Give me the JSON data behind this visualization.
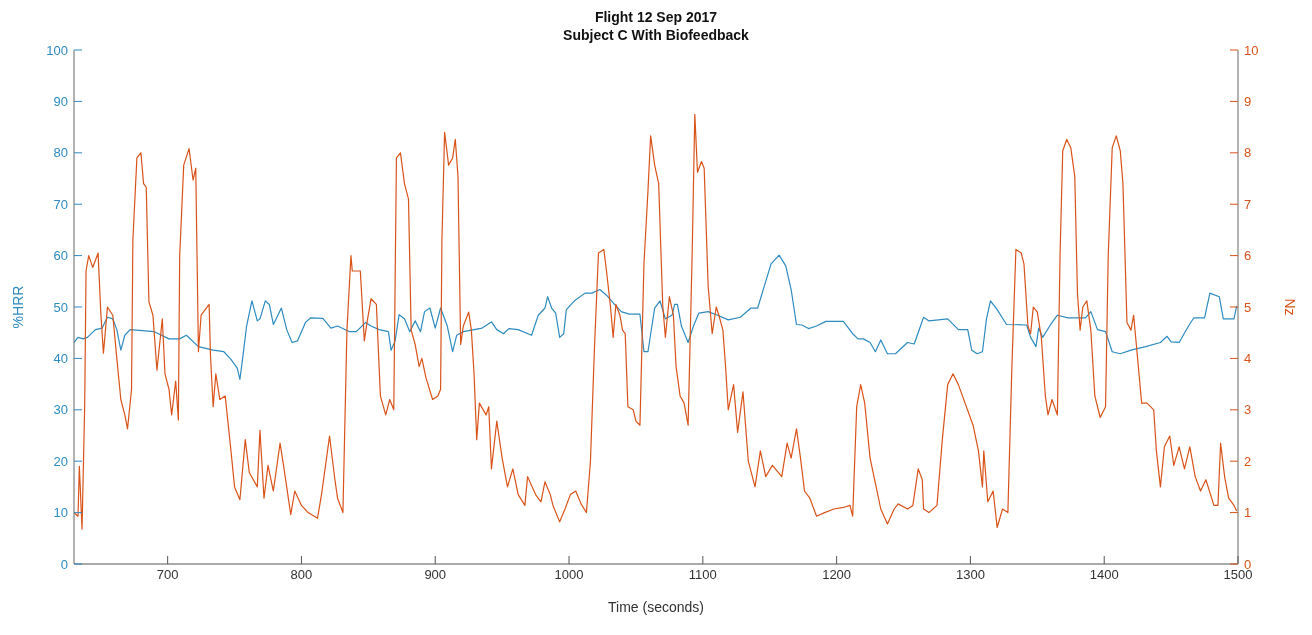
{
  "chart_data": {
    "type": "line",
    "title": "Flight 12 Sep 2017",
    "subtitle": "Subject C With Biofeedback",
    "xlabel": "Time (seconds)",
    "ylabel": "%HRR",
    "y2label": "Nz",
    "xlim": [
      630,
      1500
    ],
    "xticks": [
      700,
      800,
      900,
      1000,
      1100,
      1200,
      1300,
      1400,
      1500
    ],
    "ylim": [
      0,
      100
    ],
    "yticks": [
      0,
      10,
      20,
      30,
      40,
      50,
      60,
      70,
      80,
      90,
      100
    ],
    "y2lim": [
      0,
      10
    ],
    "y2ticks": [
      0,
      1,
      2,
      3,
      4,
      5,
      6,
      7,
      8,
      9,
      10
    ],
    "series": [
      {
        "color": "#2e8bc0",
        "axis": "y",
        "x": [
          630,
          633,
          637,
          640,
          646,
          651,
          655,
          659,
          662,
          665,
          668,
          672,
          690,
          701,
          709,
          714,
          723,
          734,
          742,
          747,
          752,
          754,
          756,
          759,
          763,
          767,
          769,
          773,
          776,
          779,
          785,
          789,
          793,
          797,
          803,
          807,
          816,
          822,
          827,
          836,
          841,
          848,
          852,
          858,
          865,
          867,
          870,
          873,
          877,
          881,
          885,
          889,
          892,
          896,
          900,
          904,
          909,
          913,
          916,
          921,
          935,
          942,
          946,
          951,
          955,
          962,
          972,
          977,
          982,
          984,
          987,
          990,
          993,
          996,
          998,
          1004,
          1012,
          1017,
          1023,
          1028,
          1034,
          1039,
          1045,
          1053,
          1056,
          1059,
          1064,
          1068,
          1072,
          1077,
          1079,
          1081,
          1084,
          1089,
          1093,
          1097,
          1104,
          1111,
          1119,
          1128,
          1136,
          1141,
          1146,
          1151,
          1157,
          1162,
          1166,
          1170,
          1174,
          1179,
          1185,
          1192,
          1205,
          1212,
          1216,
          1220,
          1225,
          1229,
          1233,
          1238,
          1244,
          1253,
          1258,
          1265,
          1269,
          1283,
          1291,
          1298,
          1301,
          1305,
          1309,
          1312,
          1315,
          1320,
          1327,
          1342,
          1345,
          1349,
          1351,
          1354,
          1360,
          1365,
          1373,
          1386,
          1390,
          1395,
          1401,
          1406,
          1412,
          1420,
          1431,
          1442,
          1447,
          1450,
          1456,
          1463,
          1467,
          1475,
          1479,
          1486,
          1489,
          1497,
          1499
        ],
        "values": [
          43.1,
          44.1,
          43.8,
          44.1,
          45.6,
          45.9,
          48,
          47.7,
          45.6,
          41.6,
          44.5,
          45.6,
          45.2,
          43.8,
          43.8,
          44.5,
          42.3,
          41.6,
          41.3,
          39.9,
          38.1,
          35.9,
          39.9,
          46.3,
          51.2,
          47.3,
          47.7,
          51.2,
          50.5,
          46.6,
          49.8,
          45.6,
          43.1,
          43.4,
          47,
          47.9,
          47.8,
          45.9,
          46.3,
          45.2,
          45.2,
          47,
          46.3,
          45.6,
          45.2,
          41.6,
          43.4,
          48.5,
          47.7,
          45.2,
          47.3,
          45.2,
          49.1,
          49.8,
          45.9,
          49.8,
          46.3,
          41.3,
          44.5,
          45.2,
          45.9,
          47.1,
          45.6,
          44.8,
          45.8,
          45.6,
          44.5,
          48.4,
          49.8,
          52,
          49.8,
          48.8,
          44.1,
          44.8,
          49.5,
          51.2,
          52.7,
          52.7,
          53.4,
          52.3,
          50.5,
          49.1,
          48.6,
          48.6,
          41.3,
          41.3,
          49.8,
          51.2,
          47.7,
          48.4,
          50.5,
          50.5,
          46.3,
          43.1,
          46.3,
          48.8,
          49.1,
          48.4,
          47.5,
          48,
          49.8,
          49.8,
          54.1,
          58.4,
          60.1,
          58,
          53.4,
          46.6,
          46.5,
          45.8,
          46.3,
          47.2,
          47.2,
          44.8,
          43.8,
          43.8,
          43.1,
          41.3,
          43.6,
          40.9,
          40.9,
          43.1,
          42.8,
          48,
          47.3,
          47.7,
          45.6,
          45.6,
          41.6,
          40.9,
          41.3,
          47.7,
          51.2,
          49.5,
          46.6,
          46.5,
          44.1,
          42.3,
          45.9,
          44.1,
          46.6,
          48.4,
          47.9,
          47.9,
          49.1,
          45.6,
          45.2,
          41.3,
          40.9,
          41.6,
          42.3,
          43.1,
          44.3,
          43.2,
          43.1,
          46.3,
          47.9,
          47.9,
          52.7,
          52,
          47.7,
          47.7,
          50.2
        ]
      },
      {
        "color": "#d95319",
        "axis": "y2",
        "x": [
          630,
          633,
          634,
          636,
          638,
          639,
          641,
          644,
          648,
          650,
          652,
          655,
          659,
          662,
          665,
          668,
          670,
          673,
          674,
          677,
          680,
          682,
          684,
          686,
          689,
          692,
          696,
          698,
          701,
          703,
          706,
          708,
          709,
          712,
          716,
          719,
          721,
          723,
          725,
          731,
          732,
          734,
          736,
          739,
          743,
          747,
          750,
          754,
          758,
          761,
          767,
          769,
          772,
          775,
          779,
          784,
          787,
          792,
          795,
          800,
          805,
          812,
          815,
          821,
          825,
          827,
          831,
          834,
          837,
          838,
          844,
          847,
          849,
          852,
          856,
          859,
          863,
          866,
          869,
          871,
          874,
          877,
          880,
          882,
          885,
          888,
          890,
          893,
          898,
          902,
          904,
          905,
          907,
          910,
          913,
          915,
          917,
          919,
          921,
          925,
          927,
          929,
          931,
          933,
          938,
          940,
          942,
          946,
          950,
          954,
          958,
          962,
          967,
          969,
          975,
          979,
          982,
          986,
          988,
          993,
          997,
          1001,
          1005,
          1009,
          1013,
          1016,
          1019,
          1022,
          1026,
          1028,
          1031,
          1033,
          1035,
          1038,
          1040,
          1042,
          1044,
          1048,
          1050,
          1053,
          1056,
          1059,
          1061,
          1064,
          1067,
          1070,
          1072,
          1075,
          1078,
          1080,
          1083,
          1086,
          1089,
          1092,
          1094,
          1096,
          1099,
          1101,
          1104,
          1107,
          1110,
          1112,
          1115,
          1117,
          1119,
          1123,
          1126,
          1130,
          1134,
          1139,
          1143,
          1147,
          1152,
          1159,
          1163,
          1166,
          1170,
          1173,
          1176,
          1180,
          1185,
          1191,
          1198,
          1205,
          1210,
          1212,
          1215,
          1218,
          1221,
          1225,
          1229,
          1233,
          1238,
          1243,
          1246,
          1253,
          1257,
          1261,
          1264,
          1265,
          1269,
          1275,
          1279,
          1283,
          1287,
          1291,
          1296,
          1302,
          1306,
          1309,
          1310,
          1313,
          1317,
          1320,
          1324,
          1328,
          1331,
          1334,
          1338,
          1340,
          1343,
          1345,
          1347,
          1350,
          1353,
          1356,
          1358,
          1361,
          1365,
          1367,
          1369,
          1372,
          1375,
          1378,
          1380,
          1382,
          1384,
          1387,
          1390,
          1393,
          1397,
          1401,
          1403,
          1406,
          1409,
          1412,
          1414,
          1417,
          1420,
          1422,
          1424,
          1428,
          1432,
          1437,
          1439,
          1442,
          1445,
          1449,
          1452,
          1456,
          1460,
          1464,
          1468,
          1472,
          1476,
          1482,
          1485,
          1487,
          1490,
          1493,
          1497,
          1499
        ],
        "values": [
          1.0,
          0.93,
          1.9,
          0.68,
          3.1,
          5.7,
          6.0,
          5.77,
          6.05,
          4.9,
          4.1,
          5.0,
          4.84,
          4.0,
          3.2,
          2.9,
          2.63,
          3.4,
          6.3,
          7.9,
          8.0,
          7.4,
          7.33,
          5.1,
          4.84,
          3.77,
          4.77,
          3.7,
          3.4,
          2.9,
          3.56,
          2.8,
          6.0,
          7.76,
          8.08,
          7.47,
          7.7,
          4.13,
          4.84,
          5.05,
          4.06,
          3.06,
          3.7,
          3.2,
          3.27,
          2.28,
          1.5,
          1.25,
          2.42,
          1.78,
          1.5,
          2.6,
          1.28,
          1.92,
          1.42,
          2.35,
          1.85,
          0.96,
          1.42,
          1.14,
          1.0,
          0.89,
          1.35,
          2.49,
          1.64,
          1.28,
          1.0,
          4.55,
          6.0,
          5.7,
          5.7,
          4.34,
          4.7,
          5.16,
          5.05,
          3.27,
          2.9,
          3.2,
          3.0,
          7.9,
          8.0,
          7.4,
          7.1,
          4.55,
          4.27,
          3.84,
          4.0,
          3.63,
          3.2,
          3.27,
          3.4,
          6.3,
          8.4,
          7.76,
          7.9,
          8.26,
          7.54,
          4.27,
          4.63,
          4.9,
          4.55,
          3.7,
          2.42,
          3.13,
          2.9,
          3.06,
          1.85,
          2.78,
          2.06,
          1.5,
          1.85,
          1.35,
          1.14,
          1.7,
          1.35,
          1.21,
          1.6,
          1.35,
          1.14,
          0.82,
          1.07,
          1.35,
          1.42,
          1.17,
          1.0,
          2.0,
          4.2,
          6.05,
          6.12,
          5.7,
          5.0,
          4.41,
          5.05,
          4.84,
          4.55,
          4.48,
          3.06,
          3.0,
          2.78,
          2.7,
          5.84,
          7.26,
          8.33,
          7.76,
          7.4,
          5.05,
          4.41,
          5.2,
          4.84,
          3.84,
          3.27,
          3.13,
          2.7,
          6.0,
          8.75,
          7.62,
          7.83,
          7.7,
          5.4,
          4.48,
          5.0,
          4.84,
          4.55,
          3.84,
          3.0,
          3.49,
          2.56,
          3.35,
          2.0,
          1.5,
          2.2,
          1.7,
          1.92,
          1.7,
          2.35,
          2.06,
          2.63,
          2.06,
          1.42,
          1.28,
          0.93,
          1.0,
          1.07,
          1.1,
          1.14,
          0.93,
          3.06,
          3.49,
          3.13,
          2.06,
          1.57,
          1.07,
          0.78,
          1.07,
          1.17,
          1.07,
          1.14,
          1.85,
          1.64,
          1.07,
          1.0,
          1.14,
          2.42,
          3.49,
          3.7,
          3.49,
          3.13,
          2.7,
          2.2,
          1.5,
          2.2,
          1.21,
          1.42,
          0.71,
          1.07,
          1.0,
          3.84,
          6.12,
          6.05,
          5.84,
          4.63,
          4.48,
          5.0,
          4.9,
          4.41,
          3.27,
          2.9,
          3.2,
          2.9,
          6.0,
          8.04,
          8.26,
          8.1,
          7.54,
          5.27,
          4.55,
          5.0,
          5.12,
          4.55,
          3.27,
          2.85,
          3.06,
          6.0,
          8.1,
          8.33,
          8.04,
          7.4,
          4.7,
          4.55,
          4.84,
          4.27,
          3.13,
          3.13,
          3.0,
          2.2,
          1.5,
          2.28,
          2.49,
          1.92,
          2.28,
          1.85,
          2.28,
          1.7,
          1.42,
          1.64,
          1.14,
          1.14,
          2.35,
          1.7,
          1.28,
          1.14,
          1.03
        ]
      }
    ]
  }
}
